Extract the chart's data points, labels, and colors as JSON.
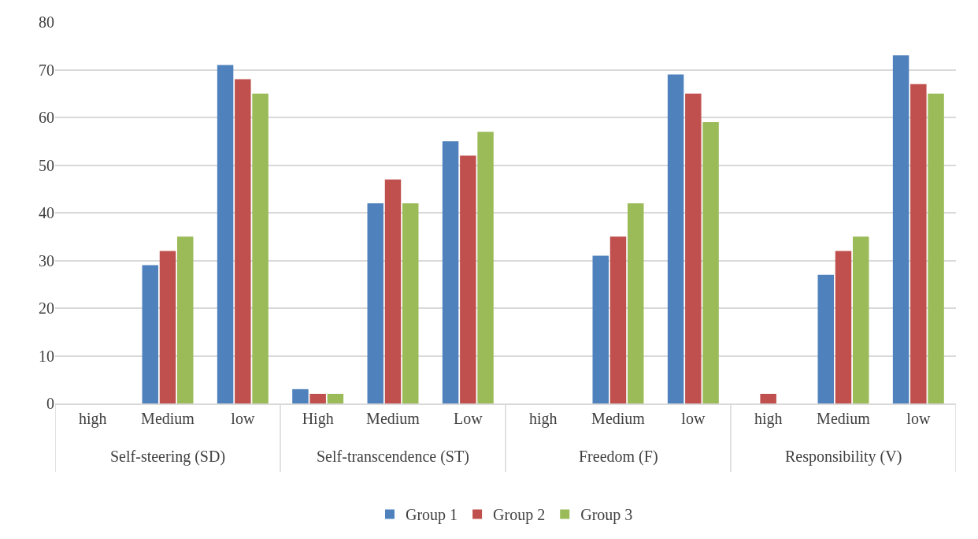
{
  "chart_data": {
    "type": "bar",
    "categories": [
      "high",
      "Medium",
      "low",
      "High",
      "Medium",
      "Low",
      "high",
      "Medium",
      "low",
      "high",
      "Medium",
      "low"
    ],
    "annotations": [
      "Self-steering (SD)",
      "Self-transcendence (ST)",
      "Freedom (F)",
      "Responsibility (V)"
    ],
    "series": [
      {
        "name": "Group 1",
        "color": "#4f81bd",
        "values": [
          0,
          29,
          71,
          3,
          42,
          55,
          0,
          31,
          69,
          0,
          27,
          73
        ]
      },
      {
        "name": "Group 2",
        "color": "#c0504d",
        "values": [
          0,
          32,
          68,
          2,
          47,
          52,
          0,
          35,
          65,
          2,
          32,
          67
        ]
      },
      {
        "name": "Group 3",
        "color": "#9bbb59",
        "values": [
          0,
          35,
          65,
          2,
          42,
          57,
          0,
          42,
          59,
          0,
          35,
          65
        ]
      }
    ],
    "ylim": [
      0,
      80
    ],
    "yticks": [
      0,
      10,
      20,
      30,
      40,
      50,
      60,
      70,
      80
    ],
    "grid": "y",
    "legend": "bottom"
  }
}
